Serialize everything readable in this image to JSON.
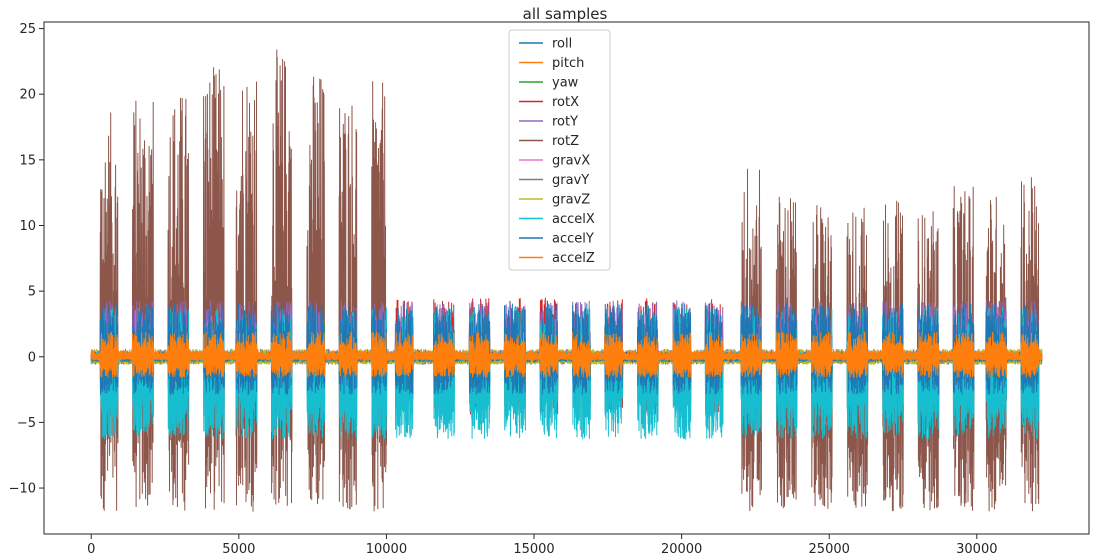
{
  "chart_data": {
    "type": "line",
    "title": "all samples",
    "xlabel": "",
    "ylabel": "",
    "xlim": [
      -1600,
      33800
    ],
    "ylim": [
      -13.5,
      25.5
    ],
    "xticks": [
      0,
      5000,
      10000,
      15000,
      20000,
      25000,
      30000
    ],
    "yticks": [
      -10,
      -5,
      0,
      5,
      10,
      15,
      20,
      25
    ],
    "grid": false,
    "legend": "upper-center",
    "n_points_per_series": 32200,
    "bursts": [
      {
        "start": 300,
        "end": 900,
        "peak": 18.7
      },
      {
        "start": 1400,
        "end": 2100,
        "peak": 20.0
      },
      {
        "start": 2600,
        "end": 3300,
        "peak": 20.5
      },
      {
        "start": 3800,
        "end": 4500,
        "peak": 22.3
      },
      {
        "start": 4900,
        "end": 5600,
        "peak": 22.9
      },
      {
        "start": 6100,
        "end": 6800,
        "peak": 23.5
      },
      {
        "start": 7300,
        "end": 7900,
        "peak": 22.0
      },
      {
        "start": 8400,
        "end": 9000,
        "peak": 20.5
      },
      {
        "start": 9500,
        "end": 10000,
        "peak": 21.0
      },
      {
        "start": 10300,
        "end": 10900,
        "peak": 4.5
      },
      {
        "start": 11600,
        "end": 12300,
        "peak": 4.3
      },
      {
        "start": 12800,
        "end": 13500,
        "peak": 4.0
      },
      {
        "start": 14000,
        "end": 14700,
        "peak": 3.9
      },
      {
        "start": 15200,
        "end": 15800,
        "peak": 3.7
      },
      {
        "start": 16300,
        "end": 16900,
        "peak": 4.0
      },
      {
        "start": 17400,
        "end": 18000,
        "peak": 3.6
      },
      {
        "start": 18500,
        "end": 19200,
        "peak": 3.8
      },
      {
        "start": 19700,
        "end": 20300,
        "peak": 3.9
      },
      {
        "start": 20800,
        "end": 21400,
        "peak": 3.0
      },
      {
        "start": 22000,
        "end": 22700,
        "peak": 15.2
      },
      {
        "start": 23200,
        "end": 23900,
        "peak": 12.8
      },
      {
        "start": 24400,
        "end": 25100,
        "peak": 12.0
      },
      {
        "start": 25600,
        "end": 26300,
        "peak": 11.7
      },
      {
        "start": 26800,
        "end": 27500,
        "peak": 12.0
      },
      {
        "start": 28000,
        "end": 28700,
        "peak": 11.2
      },
      {
        "start": 29200,
        "end": 29900,
        "peak": 13.0
      },
      {
        "start": 30300,
        "end": 31000,
        "peak": 12.7
      },
      {
        "start": 31500,
        "end": 32100,
        "peak": 13.7
      }
    ],
    "series": [
      {
        "name": "roll",
        "color": "#1f77b4",
        "band_active": [
          -3.1,
          3.1
        ],
        "band_idle": [
          -0.3,
          0.3
        ]
      },
      {
        "name": "pitch",
        "color": "#ff7f0e",
        "band_active": [
          -0.6,
          1.2
        ],
        "band_idle": [
          -0.2,
          0.5
        ]
      },
      {
        "name": "yaw",
        "color": "#2ca02c",
        "band_active": [
          -2.8,
          2.6
        ],
        "band_idle": [
          -0.4,
          0.4
        ]
      },
      {
        "name": "rotX",
        "color": "#d62728",
        "band_active": [
          -4.4,
          4.5
        ],
        "band_idle": [
          -0.3,
          0.3
        ]
      },
      {
        "name": "rotY",
        "color": "#9467bd",
        "band_active": [
          -1.8,
          4.3
        ],
        "band_idle": [
          -0.3,
          0.3
        ]
      },
      {
        "name": "rotZ",
        "color": "#8c564b",
        "band_active": [
          -11.8,
          23.5
        ],
        "band_idle": [
          -0.3,
          0.3
        ]
      },
      {
        "name": "gravX",
        "color": "#e377c2",
        "band_active": [
          -0.8,
          0.8
        ],
        "band_idle": [
          -0.5,
          0.5
        ]
      },
      {
        "name": "gravY",
        "color": "#7f7f7f",
        "band_active": [
          -1.0,
          0.9
        ],
        "band_idle": [
          -0.6,
          0.6
        ]
      },
      {
        "name": "gravZ",
        "color": "#bcbd22",
        "band_active": [
          -1.2,
          1.3
        ],
        "band_idle": [
          -0.6,
          0.6
        ]
      },
      {
        "name": "accelX",
        "color": "#17becf",
        "band_active": [
          -6.3,
          3.8
        ],
        "band_idle": [
          -0.4,
          0.4
        ]
      },
      {
        "name": "accelY",
        "color": "#1f77b4",
        "band_active": [
          -2.9,
          4.1
        ],
        "band_idle": [
          -0.4,
          0.4
        ]
      },
      {
        "name": "accelZ",
        "color": "#ff7f0e",
        "band_active": [
          -1.6,
          1.9
        ],
        "band_idle": [
          -0.3,
          0.3
        ]
      }
    ]
  }
}
